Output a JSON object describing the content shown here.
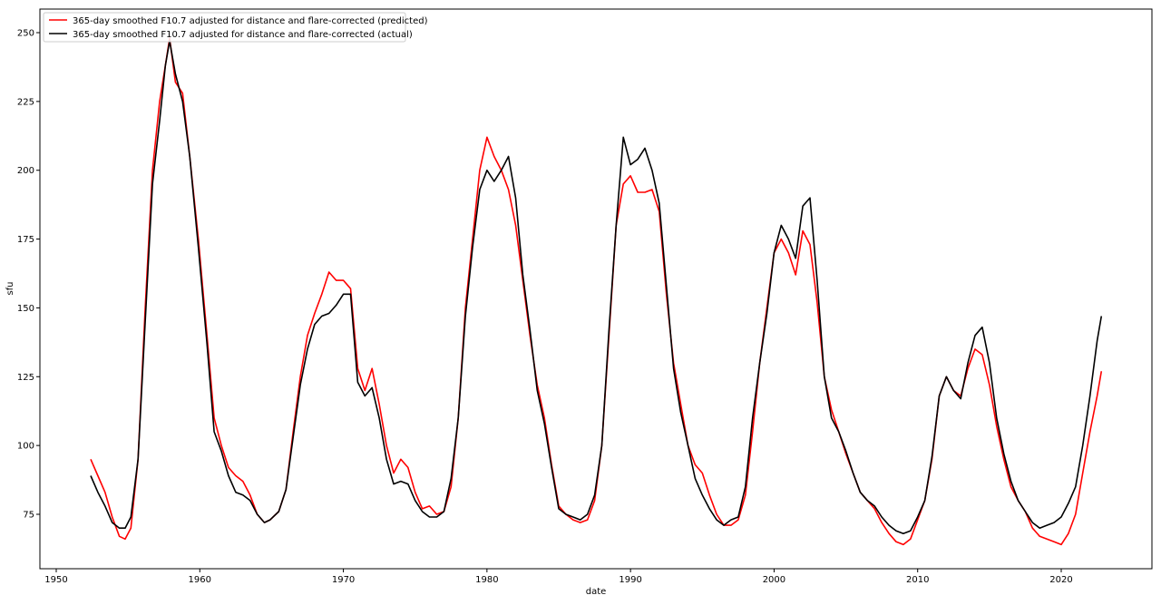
{
  "chart_data": {
    "type": "line",
    "xlabel": "date",
    "ylabel": "sfu",
    "xlim": [
      1948.6,
      1951.4
    ],
    "x_ticks": [
      "1950",
      "1960",
      "1970",
      "1980",
      "1990",
      "2000",
      "2010",
      "2020"
    ],
    "x_tick_values": [
      1950,
      1960,
      1970,
      1980,
      1990,
      2000,
      2010,
      2020
    ],
    "y_ticks": [
      "75",
      "100",
      "125",
      "150",
      "175",
      "200",
      "225",
      "250"
    ],
    "y_tick_values": [
      75,
      100,
      125,
      150,
      175,
      200,
      225,
      250
    ],
    "ylim": [
      63,
      257
    ],
    "grid": false,
    "legend_position": "top-left",
    "series": [
      {
        "name": "365-day smoothed F10.7 adjusted for distance and flare-corrected (predicted)",
        "color": "#ff0000",
        "x": [
          1952.4,
          1952.9,
          1953.4,
          1953.9,
          1954.4,
          1954.8,
          1955.2,
          1955.7,
          1956.2,
          1956.7,
          1957.2,
          1957.6,
          1957.9,
          1958.3,
          1958.8,
          1959.3,
          1959.9,
          1960.5,
          1961.0,
          1961.5,
          1962.0,
          1962.5,
          1963.0,
          1963.5,
          1964.0,
          1964.5,
          1964.9,
          1965.5,
          1966.0,
          1966.5,
          1967.0,
          1967.5,
          1968.0,
          1968.5,
          1969.0,
          1969.5,
          1970.0,
          1970.5,
          1971.0,
          1971.5,
          1972.0,
          1972.5,
          1973.0,
          1973.5,
          1974.0,
          1974.5,
          1975.0,
          1975.5,
          1976.0,
          1976.5,
          1977.0,
          1977.5,
          1978.0,
          1978.5,
          1979.0,
          1979.5,
          1980.0,
          1980.5,
          1981.0,
          1981.5,
          1982.0,
          1982.5,
          1983.0,
          1983.5,
          1984.0,
          1984.5,
          1985.0,
          1985.5,
          1986.0,
          1986.5,
          1987.0,
          1987.5,
          1988.0,
          1988.5,
          1989.0,
          1989.5,
          1990.0,
          1990.5,
          1991.0,
          1991.5,
          1992.0,
          1992.5,
          1993.0,
          1993.5,
          1994.0,
          1994.5,
          1995.0,
          1995.5,
          1996.0,
          1996.5,
          1997.0,
          1997.5,
          1998.0,
          1998.5,
          1999.0,
          1999.5,
          2000.0,
          2000.5,
          2001.0,
          2001.5,
          2002.0,
          2002.5,
          2003.0,
          2003.5,
          2004.0,
          2004.5,
          2005.0,
          2005.5,
          2006.0,
          2006.5,
          2007.0,
          2007.5,
          2008.0,
          2008.5,
          2009.0,
          2009.5,
          2010.0,
          2010.5,
          2011.0,
          2011.5,
          2012.0,
          2012.5,
          2013.0,
          2013.5,
          2014.0,
          2014.5,
          2015.0,
          2015.5,
          2016.0,
          2016.5,
          2017.0,
          2017.5,
          2018.0,
          2018.5,
          2019.0,
          2019.5,
          2020.0,
          2020.5,
          2021.0,
          2021.5,
          2022.0,
          2022.5,
          2022.8
        ],
        "values": [
          95,
          89,
          83,
          74,
          67,
          66,
          70,
          95,
          150,
          200,
          225,
          238,
          248,
          232,
          228,
          205,
          175,
          140,
          110,
          100,
          92,
          89,
          87,
          82,
          75,
          72,
          73,
          76,
          84,
          105,
          125,
          140,
          148,
          155,
          163,
          160,
          160,
          157,
          128,
          120,
          128,
          115,
          100,
          90,
          95,
          92,
          83,
          77,
          78,
          75,
          76,
          85,
          110,
          150,
          175,
          200,
          212,
          205,
          200,
          193,
          180,
          160,
          140,
          122,
          110,
          93,
          78,
          75,
          73,
          72,
          73,
          80,
          100,
          140,
          180,
          195,
          198,
          192,
          192,
          193,
          185,
          155,
          130,
          115,
          100,
          93,
          90,
          82,
          75,
          71,
          71,
          73,
          82,
          105,
          130,
          150,
          170,
          175,
          170,
          162,
          178,
          173,
          152,
          125,
          113,
          105,
          97,
          90,
          83,
          80,
          77,
          72,
          68,
          65,
          64,
          66,
          73,
          80,
          95,
          118,
          125,
          120,
          118,
          128,
          135,
          133,
          122,
          107,
          95,
          85,
          80,
          76,
          70,
          67,
          66,
          65,
          64,
          68,
          75,
          90,
          105,
          118,
          127
        ]
      },
      {
        "name": "365-day smoothed F10.7 adjusted for distance and flare-corrected (actual)",
        "color": "#000000",
        "x": [
          1952.4,
          1952.9,
          1953.4,
          1953.9,
          1954.4,
          1954.8,
          1955.2,
          1955.7,
          1956.2,
          1956.7,
          1957.2,
          1957.6,
          1957.9,
          1958.3,
          1958.8,
          1959.3,
          1959.9,
          1960.5,
          1961.0,
          1961.5,
          1962.0,
          1962.5,
          1963.0,
          1963.5,
          1964.0,
          1964.5,
          1964.9,
          1965.5,
          1966.0,
          1966.5,
          1967.0,
          1967.5,
          1968.0,
          1968.5,
          1969.0,
          1969.5,
          1970.0,
          1970.5,
          1971.0,
          1971.5,
          1972.0,
          1972.5,
          1973.0,
          1973.5,
          1974.0,
          1974.5,
          1975.0,
          1975.5,
          1976.0,
          1976.5,
          1977.0,
          1977.5,
          1978.0,
          1978.5,
          1979.0,
          1979.5,
          1980.0,
          1980.5,
          1981.0,
          1981.5,
          1982.0,
          1982.5,
          1983.0,
          1983.5,
          1984.0,
          1984.5,
          1985.0,
          1985.5,
          1986.0,
          1986.5,
          1987.0,
          1987.5,
          1988.0,
          1988.5,
          1989.0,
          1989.5,
          1990.0,
          1990.5,
          1991.0,
          1991.5,
          1992.0,
          1992.5,
          1993.0,
          1993.5,
          1994.0,
          1994.5,
          1995.0,
          1995.5,
          1996.0,
          1996.5,
          1997.0,
          1997.5,
          1998.0,
          1998.5,
          1999.0,
          1999.5,
          2000.0,
          2000.5,
          2001.0,
          2001.5,
          2002.0,
          2002.5,
          2003.0,
          2003.5,
          2004.0,
          2004.5,
          2005.0,
          2005.5,
          2006.0,
          2006.5,
          2007.0,
          2007.5,
          2008.0,
          2008.5,
          2009.0,
          2009.5,
          2010.0,
          2010.5,
          2011.0,
          2011.5,
          2012.0,
          2012.5,
          2013.0,
          2013.5,
          2014.0,
          2014.5,
          2015.0,
          2015.5,
          2016.0,
          2016.5,
          2017.0,
          2017.5,
          2018.0,
          2018.5,
          2019.0,
          2019.5,
          2020.0,
          2020.5,
          2021.0,
          2021.5,
          2022.0,
          2022.5,
          2022.8
        ],
        "values": [
          89,
          83,
          78,
          72,
          70,
          70,
          74,
          95,
          145,
          195,
          218,
          238,
          247,
          235,
          225,
          205,
          172,
          137,
          105,
          98,
          89,
          83,
          82,
          80,
          75,
          72,
          73,
          76,
          84,
          103,
          122,
          135,
          144,
          147,
          148,
          151,
          155,
          155,
          123,
          118,
          121,
          110,
          95,
          86,
          87,
          86,
          80,
          76,
          74,
          74,
          76,
          88,
          110,
          147,
          172,
          193,
          200,
          196,
          200,
          205,
          190,
          162,
          142,
          120,
          108,
          92,
          77,
          75,
          74,
          73,
          75,
          82,
          100,
          142,
          180,
          212,
          202,
          204,
          208,
          200,
          188,
          158,
          128,
          112,
          100,
          88,
          82,
          77,
          73,
          71,
          73,
          74,
          85,
          110,
          130,
          148,
          170,
          180,
          175,
          168,
          187,
          190,
          160,
          125,
          110,
          105,
          98,
          90,
          83,
          80,
          78,
          74,
          71,
          69,
          68,
          69,
          74,
          80,
          96,
          118,
          125,
          120,
          117,
          130,
          140,
          143,
          130,
          110,
          97,
          87,
          80,
          76,
          72,
          70,
          71,
          72,
          74,
          79,
          85,
          100,
          118,
          138,
          147
        ]
      }
    ]
  }
}
